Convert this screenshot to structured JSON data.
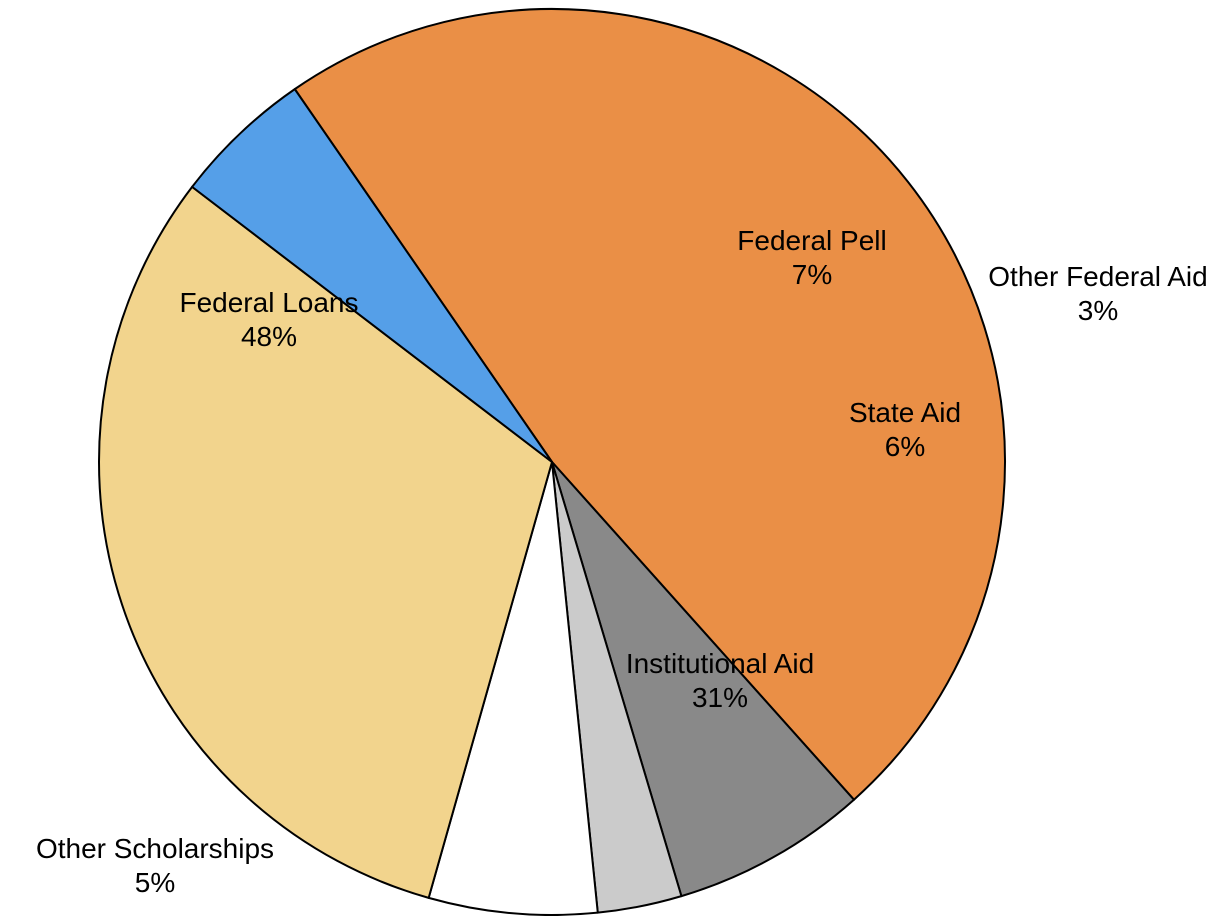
{
  "chart_data": {
    "type": "pie",
    "title": "",
    "slices": [
      {
        "name": "Federal Loans",
        "value": 48,
        "label": "48%",
        "color": "#EA8F46"
      },
      {
        "name": "Federal Pell",
        "value": 7,
        "label": "7%",
        "color": "#898989"
      },
      {
        "name": "Other Federal Aid",
        "value": 3,
        "label": "3%",
        "color": "#CBCBCB"
      },
      {
        "name": "State Aid",
        "value": 6,
        "label": "6%",
        "color": "#FFFFFF"
      },
      {
        "name": "Institutional Aid",
        "value": 31,
        "label": "31%",
        "color": "#F2D48D"
      },
      {
        "name": "Other Scholarships",
        "value": 5,
        "label": "5%",
        "color": "#559FE8"
      }
    ]
  }
}
